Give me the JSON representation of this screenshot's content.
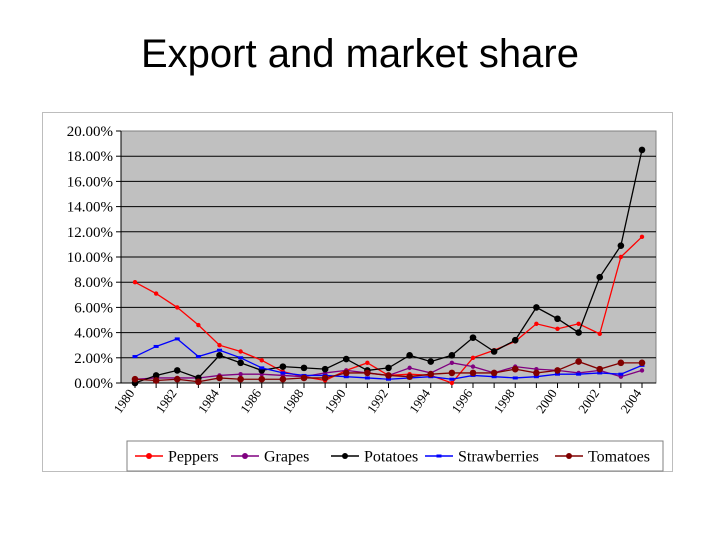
{
  "slide": {
    "title": "Export and market share"
  },
  "chart_data": {
    "type": "line",
    "title": "",
    "xlabel": "",
    "ylabel": "",
    "x": [
      1980,
      1981,
      1982,
      1983,
      1984,
      1985,
      1986,
      1987,
      1988,
      1989,
      1990,
      1991,
      1992,
      1993,
      1994,
      1995,
      1996,
      1997,
      1998,
      1999,
      2000,
      2001,
      2002,
      2003,
      2004
    ],
    "x_tick_labels": [
      "1980",
      "1982",
      "1984",
      "1986",
      "1988",
      "1990",
      "1992",
      "1994",
      "1996",
      "1998",
      "2000",
      "2002",
      "2004"
    ],
    "y_tick_labels": [
      "0.00%",
      "2.00%",
      "4.00%",
      "6.00%",
      "8.00%",
      "10.00%",
      "12.00%",
      "14.00%",
      "16.00%",
      "18.00%",
      "20.00%"
    ],
    "ylim": [
      0,
      20
    ],
    "y_unit": "%",
    "grid": "horizontal",
    "plot_background": "#c0c0c0",
    "legend_position": "bottom",
    "series": [
      {
        "name": "Peppers",
        "color": "#ff0000",
        "marker": "circle",
        "values": [
          8.0,
          7.1,
          6.0,
          4.6,
          3.0,
          2.5,
          1.8,
          0.9,
          0.5,
          0.2,
          1.0,
          1.6,
          0.6,
          0.7,
          0.6,
          0.0,
          2.0,
          2.6,
          3.3,
          4.7,
          4.3,
          4.7,
          3.9,
          10.0,
          11.6
        ]
      },
      {
        "name": "Grapes",
        "color": "#800080",
        "marker": "circle",
        "values": [
          0.3,
          0.4,
          0.4,
          0.4,
          0.6,
          0.7,
          0.7,
          0.6,
          0.5,
          0.8,
          1.0,
          0.8,
          0.6,
          1.2,
          0.8,
          1.6,
          1.3,
          0.8,
          1.3,
          1.1,
          1.0,
          0.8,
          1.0,
          0.5,
          1.0
        ]
      },
      {
        "name": "Potatoes",
        "color": "#000000",
        "marker": "circle",
        "values": [
          0.0,
          0.6,
          1.0,
          0.4,
          2.2,
          1.6,
          1.0,
          1.3,
          1.2,
          1.1,
          1.9,
          1.0,
          1.2,
          2.2,
          1.7,
          2.2,
          3.6,
          2.5,
          3.4,
          6.0,
          5.1,
          4.0,
          8.4,
          10.9,
          18.5
        ]
      },
      {
        "name": "Strawberries",
        "color": "#0000ff",
        "marker": "dash",
        "values": [
          2.1,
          2.9,
          3.5,
          2.1,
          2.6,
          2.0,
          1.2,
          0.8,
          0.6,
          0.6,
          0.5,
          0.4,
          0.3,
          0.4,
          0.5,
          0.3,
          0.6,
          0.5,
          0.4,
          0.5,
          0.7,
          0.7,
          0.8,
          0.7,
          1.4
        ]
      },
      {
        "name": "Tomatoes",
        "color": "#800000",
        "marker": "circle",
        "values": [
          0.3,
          0.2,
          0.3,
          0.1,
          0.4,
          0.3,
          0.3,
          0.3,
          0.4,
          0.4,
          0.8,
          0.8,
          0.6,
          0.5,
          0.7,
          0.8,
          0.8,
          0.8,
          1.1,
          0.8,
          1.0,
          1.7,
          1.1,
          1.6,
          1.6
        ]
      }
    ]
  }
}
